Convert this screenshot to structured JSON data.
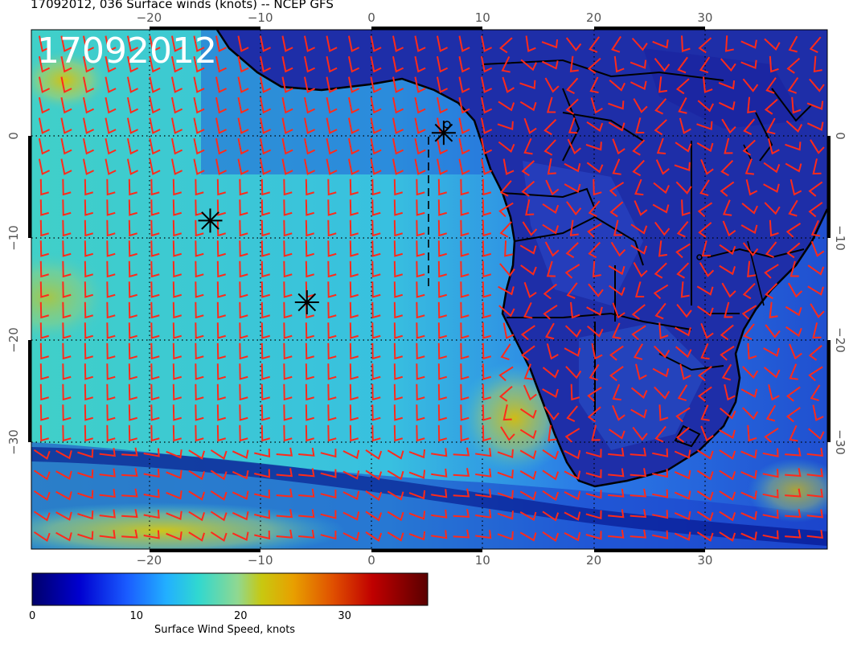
{
  "title": "17092012, 036 Surface winds (knots) -- NCEP GFS",
  "timestamp_label": "17092012",
  "axes": {
    "lon_ticks": [
      "−20",
      "−10",
      "0",
      "10",
      "20",
      "30"
    ],
    "lat_ticks": [
      "0",
      "−10",
      "−20",
      "−30"
    ],
    "lon_range": [
      -30,
      41
    ],
    "lat_range": [
      -40.5,
      10.5
    ]
  },
  "colorbar": {
    "label": "Surface Wind Speed, knots",
    "ticks": [
      "0",
      "10",
      "20",
      "30"
    ],
    "range": [
      0,
      38
    ],
    "colors": [
      "#00006a",
      "#0000cc",
      "#1a4dff",
      "#22a6ff",
      "#33d6d6",
      "#7fd6a0",
      "#c8c810",
      "#e6a000",
      "#d85000",
      "#c00000",
      "#6a0000"
    ]
  },
  "markers": [
    {
      "name": "star-1",
      "lon": 6.5,
      "lat": 0.3
    },
    {
      "name": "star-2",
      "lon": -14.5,
      "lat": -8.3
    },
    {
      "name": "star-3",
      "lon": -5.8,
      "lat": -16.3
    }
  ],
  "colors": {
    "ocean_light": "#38c8d8",
    "ocean_mid": "#2a7fe0",
    "land_dark": "#1e2ea8",
    "high_wind": "#c8c810",
    "wind_barb": "#ff2a1a",
    "coast": "#000000"
  }
}
